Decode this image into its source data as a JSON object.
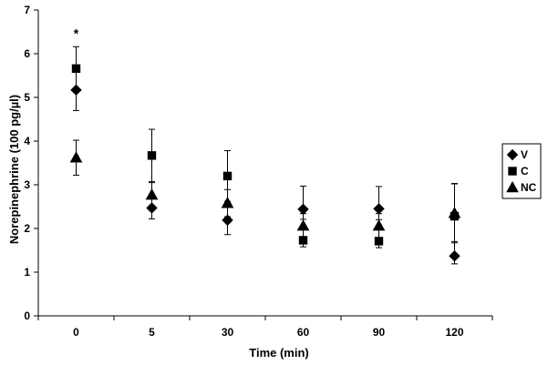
{
  "chart_data": {
    "type": "scatter",
    "xlabel": "Time (min)",
    "ylabel": "Norepinephrine (100 pg/µl)",
    "categories": [
      "0",
      "5",
      "30",
      "60",
      "90",
      "120"
    ],
    "ylim": [
      0,
      7
    ],
    "yticks": [
      "0",
      "1",
      "2",
      "3",
      "4",
      "5",
      "6",
      "7"
    ],
    "grid": false,
    "legend_position": "right",
    "series": [
      {
        "name": "V",
        "marker": "diamond",
        "color": "#000000",
        "values": [
          5.17,
          2.47,
          2.19,
          2.44,
          2.45,
          1.37
        ],
        "err_up": [
          0.5,
          0.25,
          0.33,
          0.53,
          0.51,
          0.9
        ],
        "err_down": [
          0.47,
          0.25,
          0.33,
          0.23,
          0.25,
          0.18
        ]
      },
      {
        "name": "C",
        "marker": "square",
        "color": "#000000",
        "values": [
          5.66,
          3.67,
          3.2,
          1.73,
          1.71,
          2.28
        ],
        "err_up": [
          0.5,
          0.6,
          0.58,
          0.3,
          0.3,
          0.74
        ],
        "err_down": [
          0.5,
          0.6,
          0.58,
          0.15,
          0.15,
          0.58
        ]
      },
      {
        "name": "NC",
        "marker": "triangle",
        "color": "#000000",
        "values": [
          3.62,
          2.77,
          2.58,
          2.06,
          2.06,
          2.35
        ],
        "err_up": [
          0.4,
          0.28,
          0.31,
          0.28,
          0.28,
          0.68
        ],
        "err_down": [
          0.4,
          0.28,
          0.31,
          0.28,
          0.28,
          0.68
        ]
      }
    ],
    "annotations": [
      {
        "text": "*",
        "category": "0",
        "y": 6.45
      }
    ]
  }
}
